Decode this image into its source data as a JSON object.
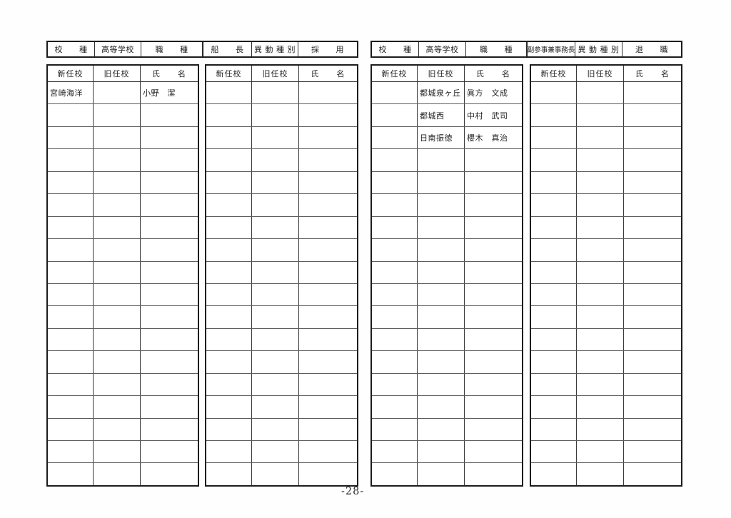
{
  "page_number": "-28-",
  "left": {
    "info_bar": {
      "school_type_label": "校　　種",
      "school_type_value": "高等学校",
      "job_title_label": "職　　種",
      "job_title_value": "船　　長",
      "transfer_type_label": "異 動 種 別",
      "transfer_type_value": "採　　用"
    },
    "tables": [
      {
        "headers": [
          "新任校",
          "旧任校",
          "氏　　名"
        ],
        "rows": [
          [
            "宮崎海洋",
            "",
            "小野　潔"
          ],
          [
            "",
            "",
            ""
          ],
          [
            "",
            "",
            ""
          ],
          [
            "",
            "",
            ""
          ],
          [
            "",
            "",
            ""
          ],
          [
            "",
            "",
            ""
          ],
          [
            "",
            "",
            ""
          ],
          [
            "",
            "",
            ""
          ],
          [
            "",
            "",
            ""
          ],
          [
            "",
            "",
            ""
          ],
          [
            "",
            "",
            ""
          ],
          [
            "",
            "",
            ""
          ],
          [
            "",
            "",
            ""
          ],
          [
            "",
            "",
            ""
          ],
          [
            "",
            "",
            ""
          ],
          [
            "",
            "",
            ""
          ],
          [
            "",
            "",
            ""
          ],
          [
            "",
            "",
            ""
          ]
        ]
      },
      {
        "headers": [
          "新任校",
          "旧任校",
          "氏　　名"
        ],
        "rows": [
          [
            "",
            "",
            ""
          ],
          [
            "",
            "",
            ""
          ],
          [
            "",
            "",
            ""
          ],
          [
            "",
            "",
            ""
          ],
          [
            "",
            "",
            ""
          ],
          [
            "",
            "",
            ""
          ],
          [
            "",
            "",
            ""
          ],
          [
            "",
            "",
            ""
          ],
          [
            "",
            "",
            ""
          ],
          [
            "",
            "",
            ""
          ],
          [
            "",
            "",
            ""
          ],
          [
            "",
            "",
            ""
          ],
          [
            "",
            "",
            ""
          ],
          [
            "",
            "",
            ""
          ],
          [
            "",
            "",
            ""
          ],
          [
            "",
            "",
            ""
          ],
          [
            "",
            "",
            ""
          ],
          [
            "",
            "",
            ""
          ]
        ]
      }
    ]
  },
  "right": {
    "info_bar": {
      "school_type_label": "校　　種",
      "school_type_value": "高等学校",
      "job_title_label": "職　　種",
      "job_title_value": "副参事兼事務長",
      "transfer_type_label": "異 動 種 別",
      "transfer_type_value": "退　　職"
    },
    "tables": [
      {
        "headers": [
          "新任校",
          "旧任校",
          "氏　　名"
        ],
        "rows": [
          [
            "",
            "都城泉ヶ丘",
            "眞方　文成"
          ],
          [
            "",
            "都城西",
            "中村　武司"
          ],
          [
            "",
            "日南振徳",
            "櫻木　真治"
          ],
          [
            "",
            "",
            ""
          ],
          [
            "",
            "",
            ""
          ],
          [
            "",
            "",
            ""
          ],
          [
            "",
            "",
            ""
          ],
          [
            "",
            "",
            ""
          ],
          [
            "",
            "",
            ""
          ],
          [
            "",
            "",
            ""
          ],
          [
            "",
            "",
            ""
          ],
          [
            "",
            "",
            ""
          ],
          [
            "",
            "",
            ""
          ],
          [
            "",
            "",
            ""
          ],
          [
            "",
            "",
            ""
          ],
          [
            "",
            "",
            ""
          ],
          [
            "",
            "",
            ""
          ],
          [
            "",
            "",
            ""
          ]
        ]
      },
      {
        "headers": [
          "新任校",
          "旧任校",
          "氏　　名"
        ],
        "rows": [
          [
            "",
            "",
            ""
          ],
          [
            "",
            "",
            ""
          ],
          [
            "",
            "",
            ""
          ],
          [
            "",
            "",
            ""
          ],
          [
            "",
            "",
            ""
          ],
          [
            "",
            "",
            ""
          ],
          [
            "",
            "",
            ""
          ],
          [
            "",
            "",
            ""
          ],
          [
            "",
            "",
            ""
          ],
          [
            "",
            "",
            ""
          ],
          [
            "",
            "",
            ""
          ],
          [
            "",
            "",
            ""
          ],
          [
            "",
            "",
            ""
          ],
          [
            "",
            "",
            ""
          ],
          [
            "",
            "",
            ""
          ],
          [
            "",
            "",
            ""
          ],
          [
            "",
            "",
            ""
          ],
          [
            "",
            "",
            ""
          ]
        ]
      }
    ]
  }
}
